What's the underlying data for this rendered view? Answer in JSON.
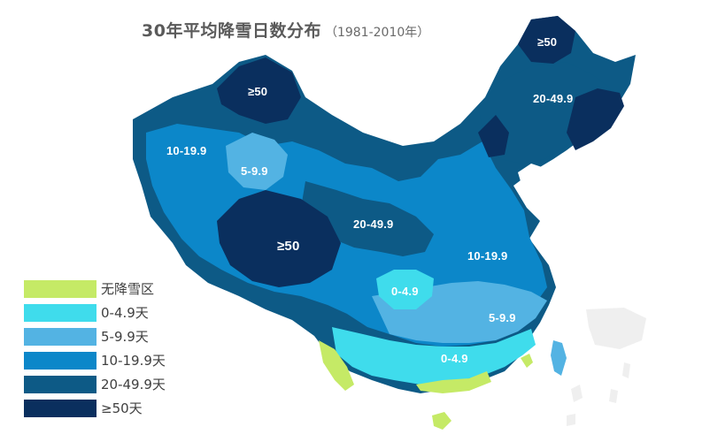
{
  "title": {
    "main": "30年平均降雪日数分布",
    "sub": "（1981-2010年）"
  },
  "colors": {
    "none": "#c5ea66",
    "c0_4_9": "#3fdcec",
    "c5_9_9": "#53b3e3",
    "c10_19_9": "#0c87c9",
    "c20_49_9": "#0d5a86",
    "c50": "#0a2f5e",
    "land_outline": "#bdbdbd",
    "islands": "#efefef"
  },
  "legend": {
    "items": [
      {
        "label": "无降雪区",
        "color": "#c5ea66"
      },
      {
        "label": "0-4.9天",
        "color": "#3fdcec"
      },
      {
        "label": "5-9.9天",
        "color": "#53b3e3"
      },
      {
        "label": "10-19.9天",
        "color": "#0c87c9"
      },
      {
        "label": "20-49.9天",
        "color": "#0d5a86"
      },
      {
        "label": "≥50天",
        "color": "#0a2f5e"
      }
    ]
  },
  "map_labels": {
    "northeast_top": "≥50",
    "northeast_mid": "20-49.9",
    "xinjiang_north": "≥50",
    "xinjiang_west": "10-19.9",
    "xinjiang_center": "5-9.9",
    "tibet": "≥50",
    "central": "20-49.9",
    "east": "10-19.9",
    "sichuan": "0-4.9",
    "southeast": "5-9.9",
    "south": "0-4.9"
  }
}
